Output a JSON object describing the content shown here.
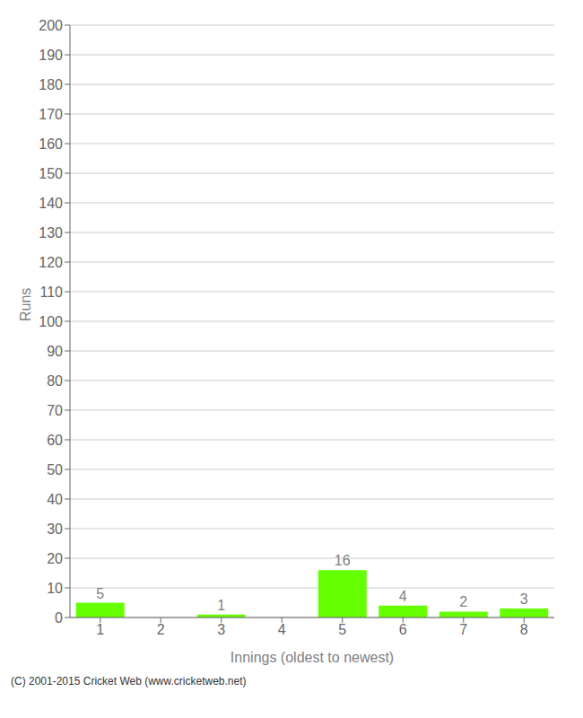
{
  "chart_data": {
    "type": "bar",
    "categories": [
      "1",
      "2",
      "3",
      "4",
      "5",
      "6",
      "7",
      "8"
    ],
    "values": [
      5,
      0,
      1,
      0,
      16,
      4,
      2,
      3
    ],
    "color": "#66ff00",
    "xlabel": "Innings (oldest to newest)",
    "ylabel": "Runs",
    "ylim": [
      0,
      200
    ],
    "yticks": [
      0,
      10,
      20,
      30,
      40,
      50,
      60,
      70,
      80,
      90,
      100,
      110,
      120,
      130,
      140,
      150,
      160,
      170,
      180,
      190,
      200
    ],
    "grid": true,
    "data_labels": true,
    "annotations": [
      "(C) 2001-2015 Cricket Web (www.cricketweb.net)"
    ]
  }
}
